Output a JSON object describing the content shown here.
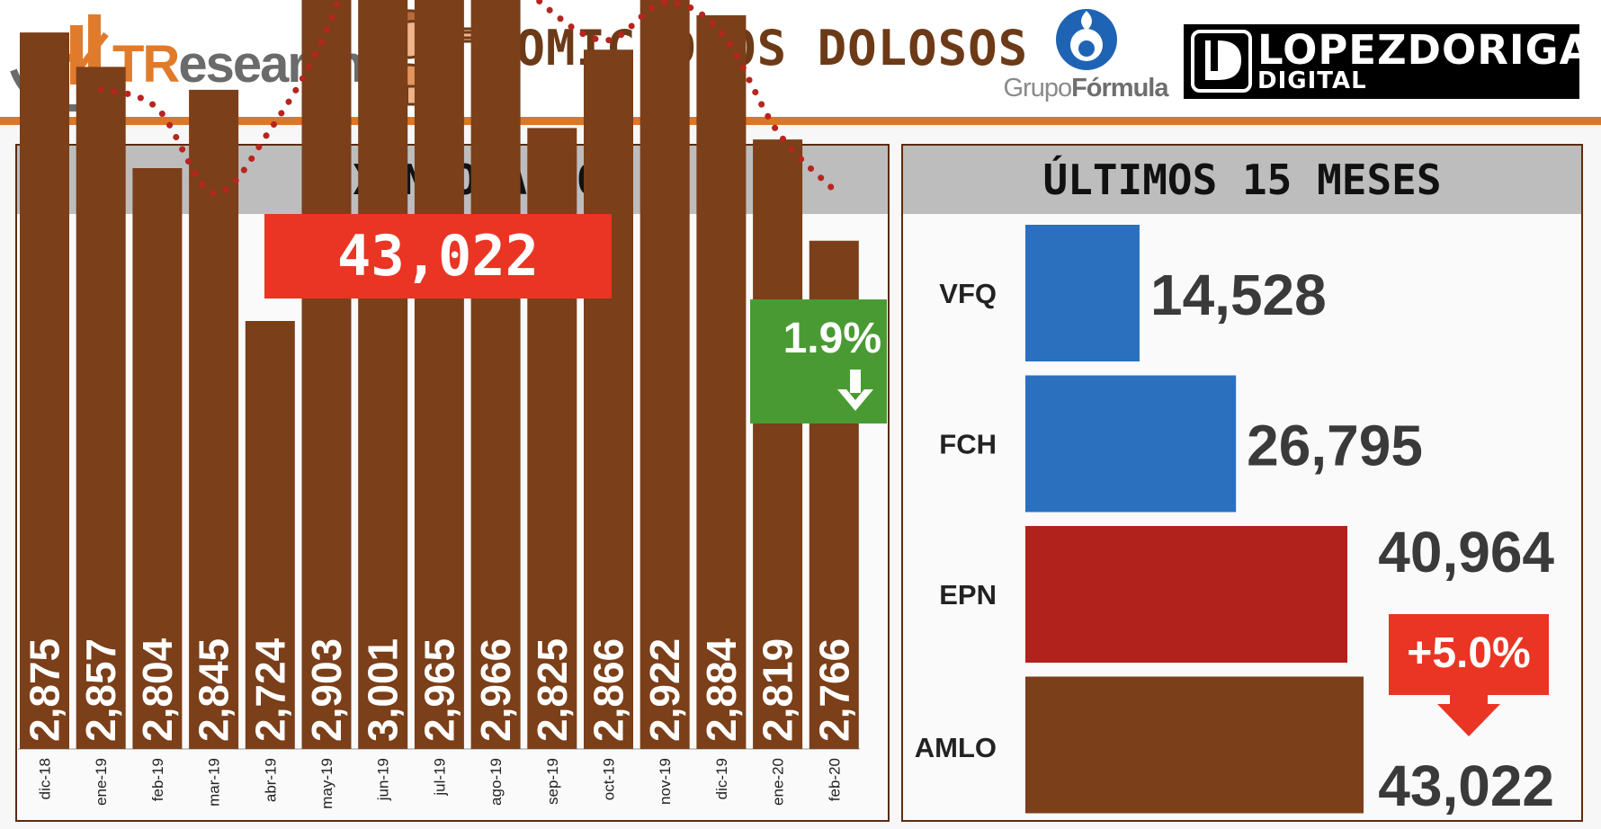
{
  "header": {
    "brand_left": "TResearch",
    "brand_left_parts": [
      "TR",
      "esearch"
    ],
    "title": "HOMICIDIOS DOLOSOS",
    "grupo_logo": [
      "Grupo",
      "Fórmula"
    ],
    "lopez_logo_line1": "LOPEZDORIGA",
    "lopez_logo_line2": "DIGITAL",
    "colors": {
      "accent": "#d9772b",
      "title": "#6d3a17"
    }
  },
  "left_panel": {
    "title": "SEXENIO AMLO",
    "total_label": "43,022",
    "change_label": "1.9%",
    "change_icon": "arrow-down-icon"
  },
  "right_panel": {
    "title": "ÚLTIMOS 15 MESES",
    "change_label": "+5.0%",
    "change_icon": "arrow-down-icon"
  },
  "chart_data": [
    {
      "type": "bar",
      "categories": [
        "dic-18",
        "ene-19",
        "feb-19",
        "mar-19",
        "abr-19",
        "may-19",
        "jun-19",
        "jul-19",
        "ago-19",
        "sep-19",
        "oct-19",
        "nov-19",
        "dic-19",
        "ene-20",
        "feb-20"
      ],
      "values": [
        2875,
        2857,
        2804,
        2845,
        2724,
        2903,
        3001,
        2965,
        2966,
        2825,
        2866,
        2922,
        2884,
        2819,
        2766
      ],
      "value_labels": [
        "2,875",
        "2,857",
        "2,804",
        "2,845",
        "2,724",
        "2,903",
        "3,001",
        "2,965",
        "2,966",
        "2,825",
        "2,866",
        "2,922",
        "2,884",
        "2,819",
        "2,766"
      ],
      "trendline": {
        "style": "dotted",
        "color": "#b5261e"
      },
      "ylim": [
        2500,
        3050
      ],
      "grid": false,
      "colors": {
        "bar": "#7b3f19"
      }
    },
    {
      "type": "bar",
      "orientation": "horizontal",
      "categories": [
        "VFQ",
        "FCH",
        "EPN",
        "AMLO"
      ],
      "values": [
        14528,
        26795,
        40964,
        43022
      ],
      "value_labels": [
        "14,528",
        "26,795",
        "40,964",
        "43,022"
      ],
      "colors": [
        "#2a70bf",
        "#2a70bf",
        "#b0221b",
        "#7b3f19"
      ],
      "xlim": [
        0,
        43022
      ],
      "grid": false
    }
  ]
}
